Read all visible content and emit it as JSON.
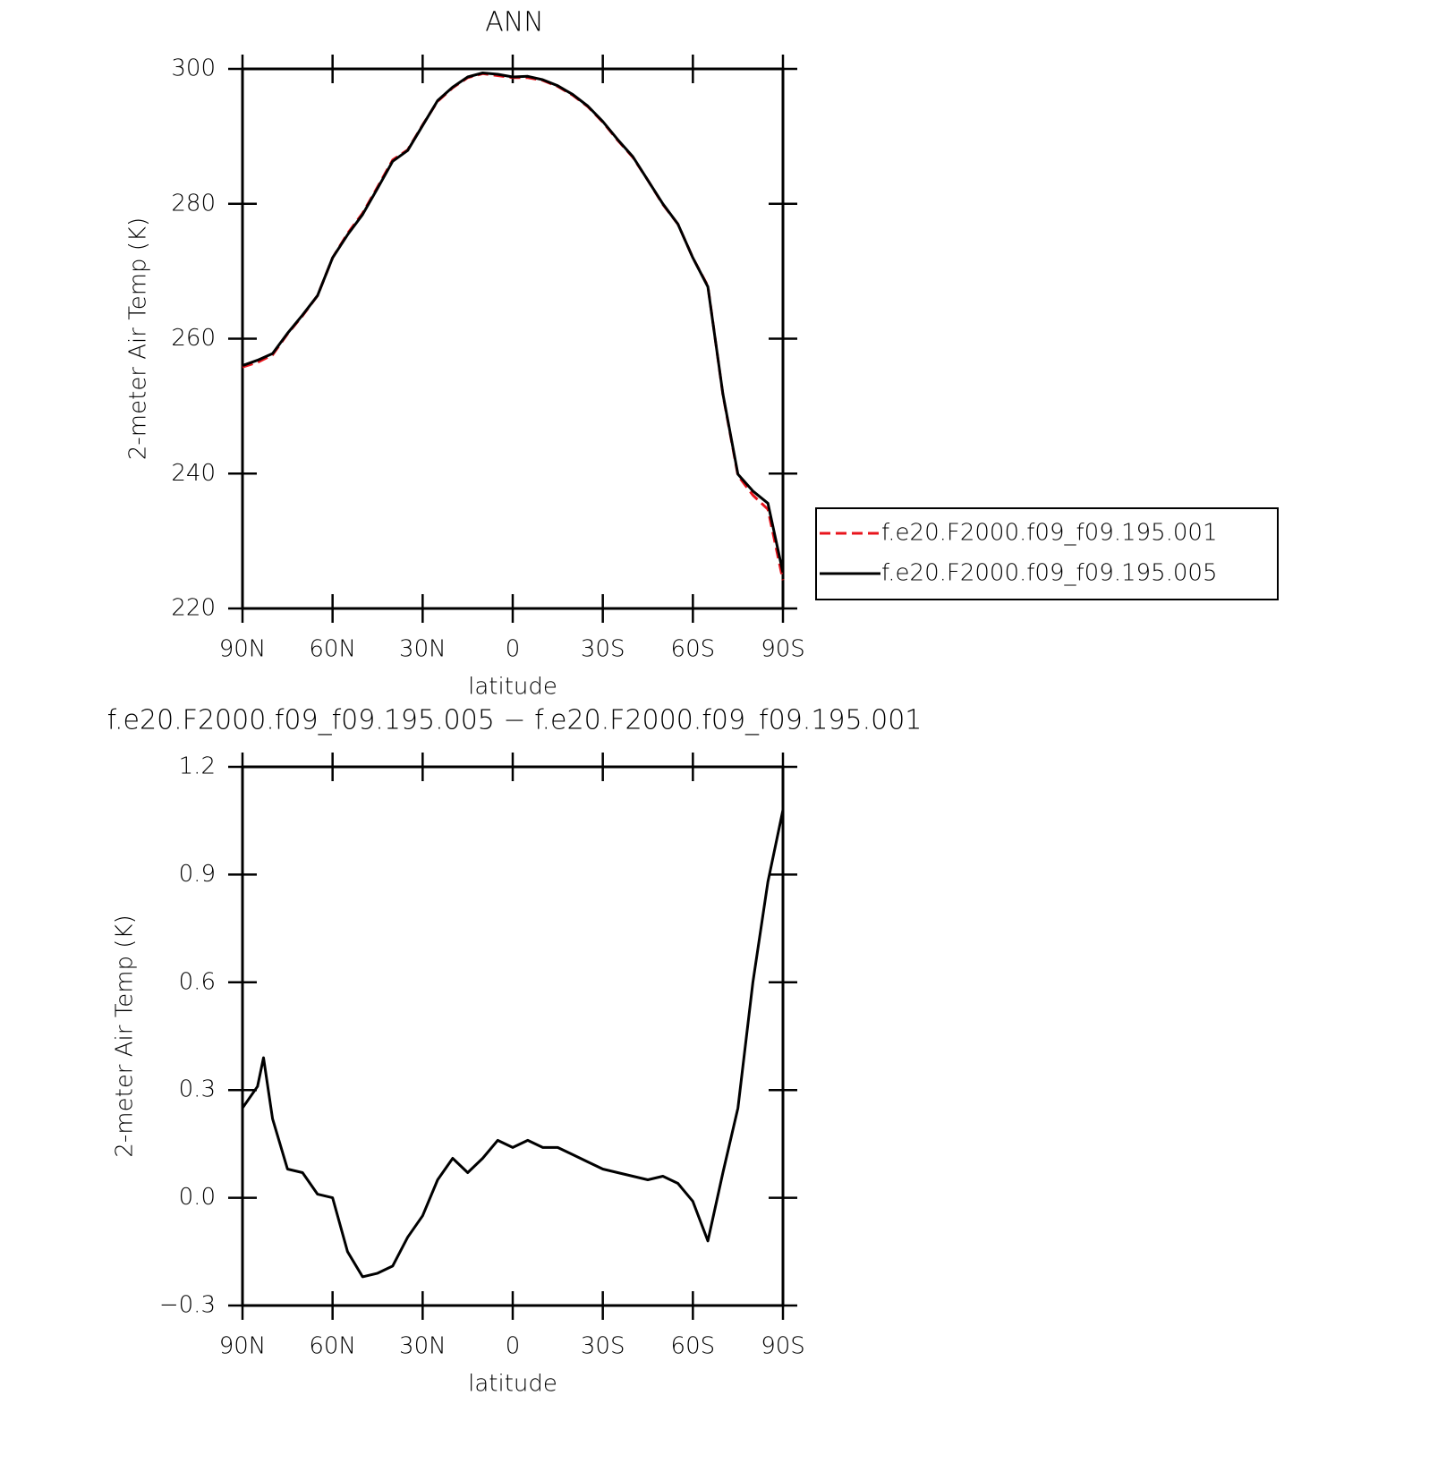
{
  "chart_data": [
    {
      "type": "line",
      "title": "ANN",
      "xlabel": "latitude",
      "ylabel": "2-meter Air Temp (K)",
      "x": [
        90,
        85,
        80,
        75,
        70,
        65,
        60,
        55,
        50,
        45,
        40,
        35,
        30,
        25,
        20,
        15,
        10,
        5,
        0,
        -5,
        -10,
        -15,
        -20,
        -25,
        -30,
        -35,
        -40,
        -45,
        -50,
        -55,
        -60,
        -65,
        -70,
        -75,
        -80,
        -85,
        -90
      ],
      "series": [
        {
          "name": "f.e20.F2000.f09_f09.195.001",
          "color": "#e8141c",
          "dash": true,
          "values": [
            255.8,
            256.5,
            257.6,
            260.7,
            263.4,
            266.4,
            272.0,
            275.6,
            278.6,
            282.5,
            286.5,
            288.0,
            291.7,
            295.2,
            297.2,
            298.7,
            299.3,
            299.0,
            298.7,
            298.7,
            298.3,
            297.4,
            296.1,
            294.4,
            292.1,
            289.4,
            286.9,
            283.5,
            279.9,
            277.0,
            272.0,
            267.8,
            251.7,
            239.7,
            236.8,
            234.7,
            224.2
          ]
        },
        {
          "name": "f.e20.F2000.f09_f09.195.005",
          "color": "#000000",
          "dash": false,
          "values": [
            256.0,
            256.8,
            257.8,
            260.8,
            263.5,
            266.4,
            272.0,
            275.4,
            278.4,
            282.3,
            286.3,
            287.9,
            291.6,
            295.3,
            297.3,
            298.8,
            299.4,
            299.2,
            298.8,
            298.9,
            298.4,
            297.5,
            296.2,
            294.5,
            292.2,
            289.5,
            287.0,
            283.5,
            280.0,
            277.0,
            272.0,
            267.7,
            251.8,
            239.9,
            237.4,
            235.6,
            225.3
          ]
        }
      ],
      "xlim": [
        90,
        -90
      ],
      "xticks": [
        {
          "value": 90,
          "label": "90N"
        },
        {
          "value": 60,
          "label": "60N"
        },
        {
          "value": 30,
          "label": "30N"
        },
        0,
        {
          "value": -30,
          "label": "30S"
        },
        {
          "value": -60,
          "label": "60S"
        },
        {
          "value": -90,
          "label": "90S"
        }
      ],
      "ylim": [
        220,
        300
      ],
      "yticks": [
        220,
        240,
        260,
        280,
        300
      ],
      "legend": "right"
    },
    {
      "type": "line",
      "title": "f.e20.F2000.f09_f09.195.005 − f.e20.F2000.f09_f09.195.001",
      "xlabel": "latitude",
      "ylabel": "2-meter Air Temp (K)",
      "x": [
        90,
        85,
        83,
        80,
        75,
        70,
        65,
        60,
        55,
        50,
        45,
        40,
        35,
        30,
        25,
        20,
        15,
        10,
        5,
        0,
        -5,
        -10,
        -15,
        -20,
        -25,
        -30,
        -35,
        -40,
        -45,
        -50,
        -55,
        -60,
        -65,
        -70,
        -75,
        -80,
        -85,
        -90
      ],
      "series": [
        {
          "color": "#000000",
          "dash": false,
          "values": [
            0.25,
            0.31,
            0.39,
            0.22,
            0.08,
            0.07,
            0.01,
            0.0,
            -0.15,
            -0.22,
            -0.21,
            -0.19,
            -0.11,
            -0.05,
            0.05,
            0.11,
            0.07,
            0.11,
            0.16,
            0.14,
            0.16,
            0.14,
            0.14,
            0.12,
            0.1,
            0.08,
            0.07,
            0.06,
            0.05,
            0.06,
            0.04,
            -0.01,
            -0.12,
            0.07,
            0.25,
            0.6,
            0.88,
            1.08
          ]
        }
      ],
      "xlim": [
        90,
        -90
      ],
      "xticks": [
        {
          "value": 90,
          "label": "90N"
        },
        {
          "value": 60,
          "label": "60N"
        },
        {
          "value": 30,
          "label": "30N"
        },
        0,
        {
          "value": -30,
          "label": "30S"
        },
        {
          "value": -60,
          "label": "60S"
        },
        {
          "value": -90,
          "label": "90S"
        }
      ],
      "ylim": [
        -0.3,
        1.2
      ],
      "yticks": [
        {
          "value": -0.3,
          "label": "−0.3"
        },
        {
          "value": 0,
          "label": "0.0"
        },
        0.3,
        0.6,
        0.9,
        1.2
      ]
    }
  ]
}
